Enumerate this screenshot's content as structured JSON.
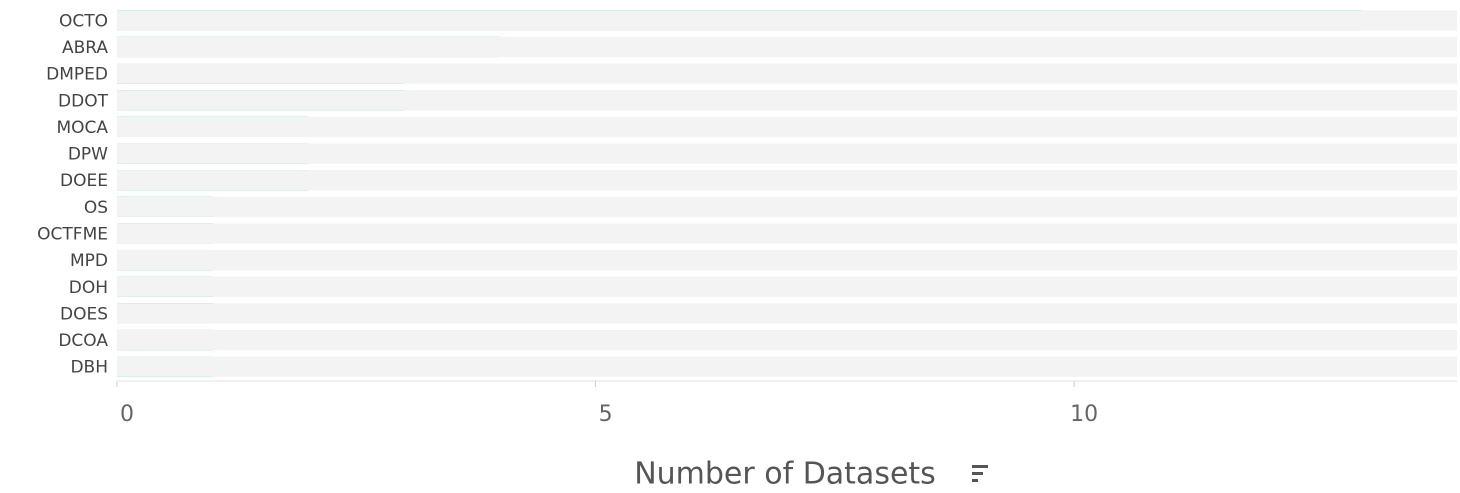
{
  "chart_data": {
    "type": "bar",
    "orientation": "horizontal",
    "categories": [
      "OCTO",
      "ABRA",
      "DMPED",
      "DDOT",
      "MOCA",
      "DPW",
      "DOEE",
      "OS",
      "OCTFME",
      "MPD",
      "DOH",
      "DOES",
      "DCOA",
      "DBH"
    ],
    "values": [
      13,
      4,
      3,
      3,
      2,
      2,
      2,
      1,
      1,
      1,
      1,
      1,
      1,
      1
    ],
    "color": "#17be73",
    "xlabel": "Number of Datasets",
    "xlim": [
      0,
      14
    ],
    "xticks": [
      0,
      5,
      10
    ]
  }
}
